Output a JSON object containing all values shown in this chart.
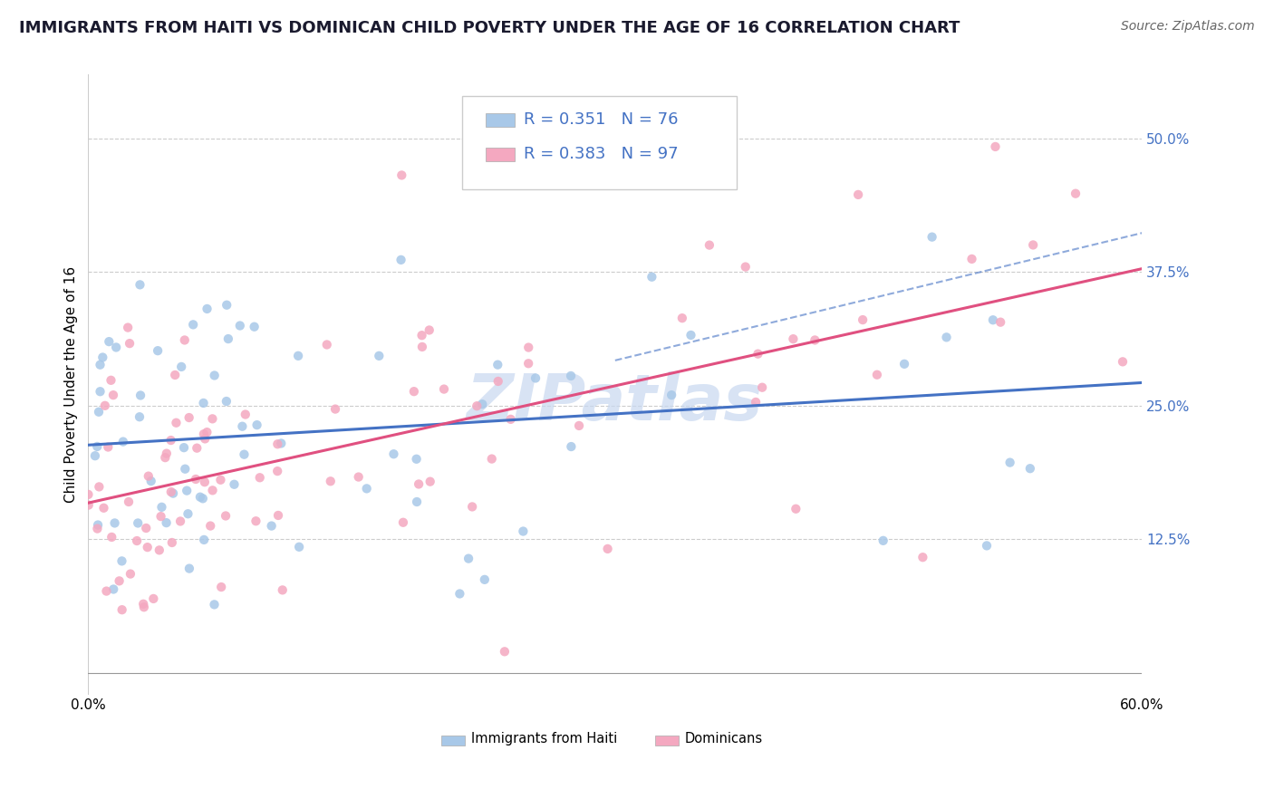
{
  "title": "IMMIGRANTS FROM HAITI VS DOMINICAN CHILD POVERTY UNDER THE AGE OF 16 CORRELATION CHART",
  "source": "Source: ZipAtlas.com",
  "ylabel": "Child Poverty Under the Age of 16",
  "ytick_labels": [
    "",
    "12.5%",
    "25.0%",
    "37.5%",
    "50.0%"
  ],
  "ytick_vals": [
    0.0,
    0.125,
    0.25,
    0.375,
    0.5
  ],
  "xlim": [
    0.0,
    0.6
  ],
  "ylim": [
    -0.02,
    0.56
  ],
  "legend_labels": [
    "Immigrants from Haiti",
    "Dominicans"
  ],
  "color_haiti": "#a8c8e8",
  "color_dominican": "#f4a8c0",
  "line_color_haiti": "#4472c4",
  "line_color_dominican": "#e05080",
  "watermark": "ZIPatlas",
  "watermark_color": "#c8d8f0",
  "haiti_seed": 17,
  "dom_seed": 23,
  "title_fontsize": 13,
  "source_fontsize": 10,
  "ylabel_fontsize": 11,
  "tick_fontsize": 11,
  "legend_fontsize": 13
}
